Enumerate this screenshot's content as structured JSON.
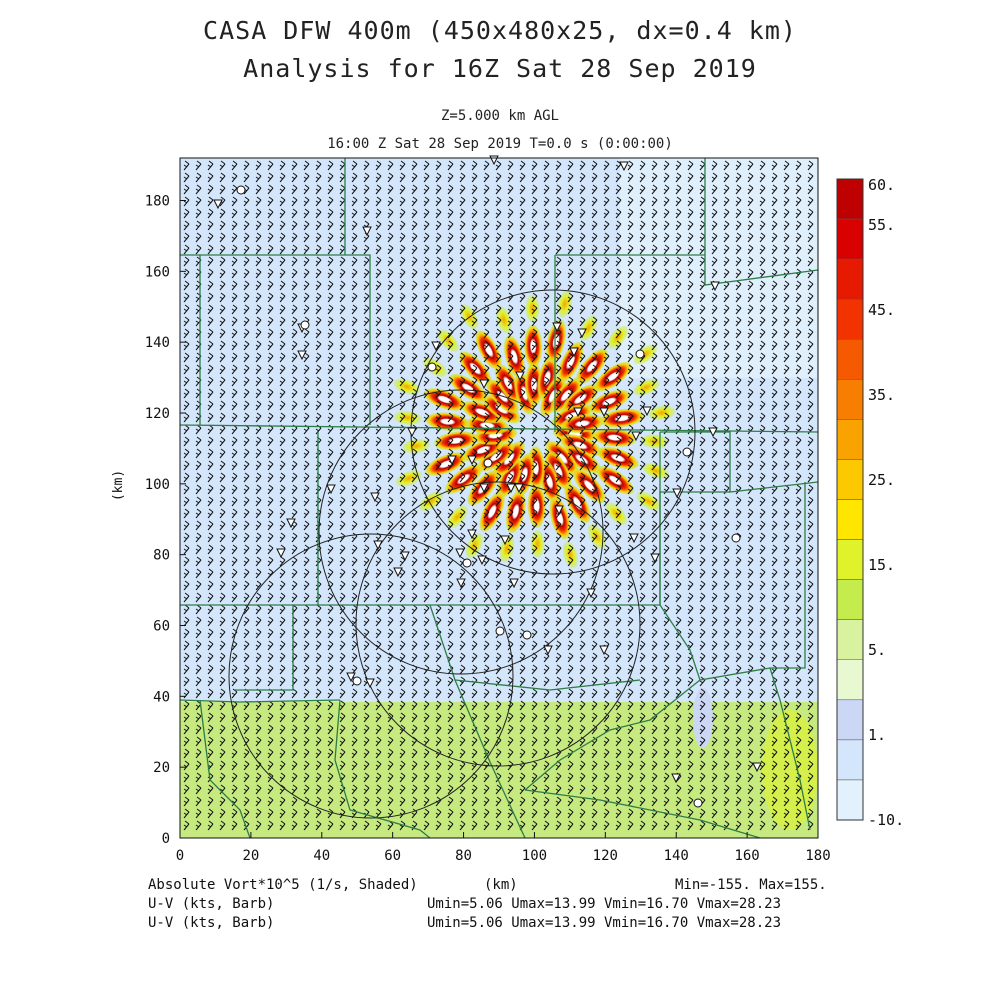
{
  "title_line1": "CASA DFW 400m (450x480x25, dx=0.4 km)",
  "title_line2": "Analysis for 16Z Sat 28 Sep 2019",
  "level_label": "Z=5.000 km AGL",
  "time_label": "16:00 Z Sat 28 Sep 2019    T=0.0 s (0:00:00)",
  "y_axis_label": "(km)",
  "x_axis_label": "(km)",
  "x_ticks": [
    "0",
    "20",
    "40",
    "60",
    "80",
    "100",
    "120",
    "140",
    "160",
    "180"
  ],
  "y_ticks": [
    "0",
    "20",
    "40",
    "60",
    "80",
    "100",
    "120",
    "140",
    "160",
    "180"
  ],
  "colorbar": {
    "labels": [
      "60.",
      "55.",
      "45.",
      "35.",
      "25.",
      "15.",
      "5.",
      "1.",
      "-10."
    ],
    "colors": [
      "#bf0000",
      "#d90000",
      "#e61a00",
      "#f23300",
      "#f55a00",
      "#f77e00",
      "#f9a300",
      "#fcc800",
      "#ffe600",
      "#e0f22a",
      "#c4ec4d",
      "#d8f2a0",
      "#e8f8d0",
      "#ccd6f5",
      "#d4e6fb",
      "#e2f1fc"
    ]
  },
  "footer": {
    "field_line": "Absolute Vort*10^5 (1/s, Shaded)",
    "unit": "(km)",
    "minmax": "Min=-155. Max=155.",
    "barb_label_1": "U-V (kts, Barb)",
    "barb_label_2": "U-V (kts, Barb)",
    "uv_stats_1": "Umin=5.06 Umax=13.99 Vmin=16.70 Vmax=28.23",
    "uv_stats_2": "Umin=5.06 Umax=13.99 Vmin=16.70 Vmax=28.23"
  },
  "colors": {
    "background_field": "#d4e6fb",
    "low_band": "#c6ea80",
    "county_lines": "#2e7d46"
  }
}
